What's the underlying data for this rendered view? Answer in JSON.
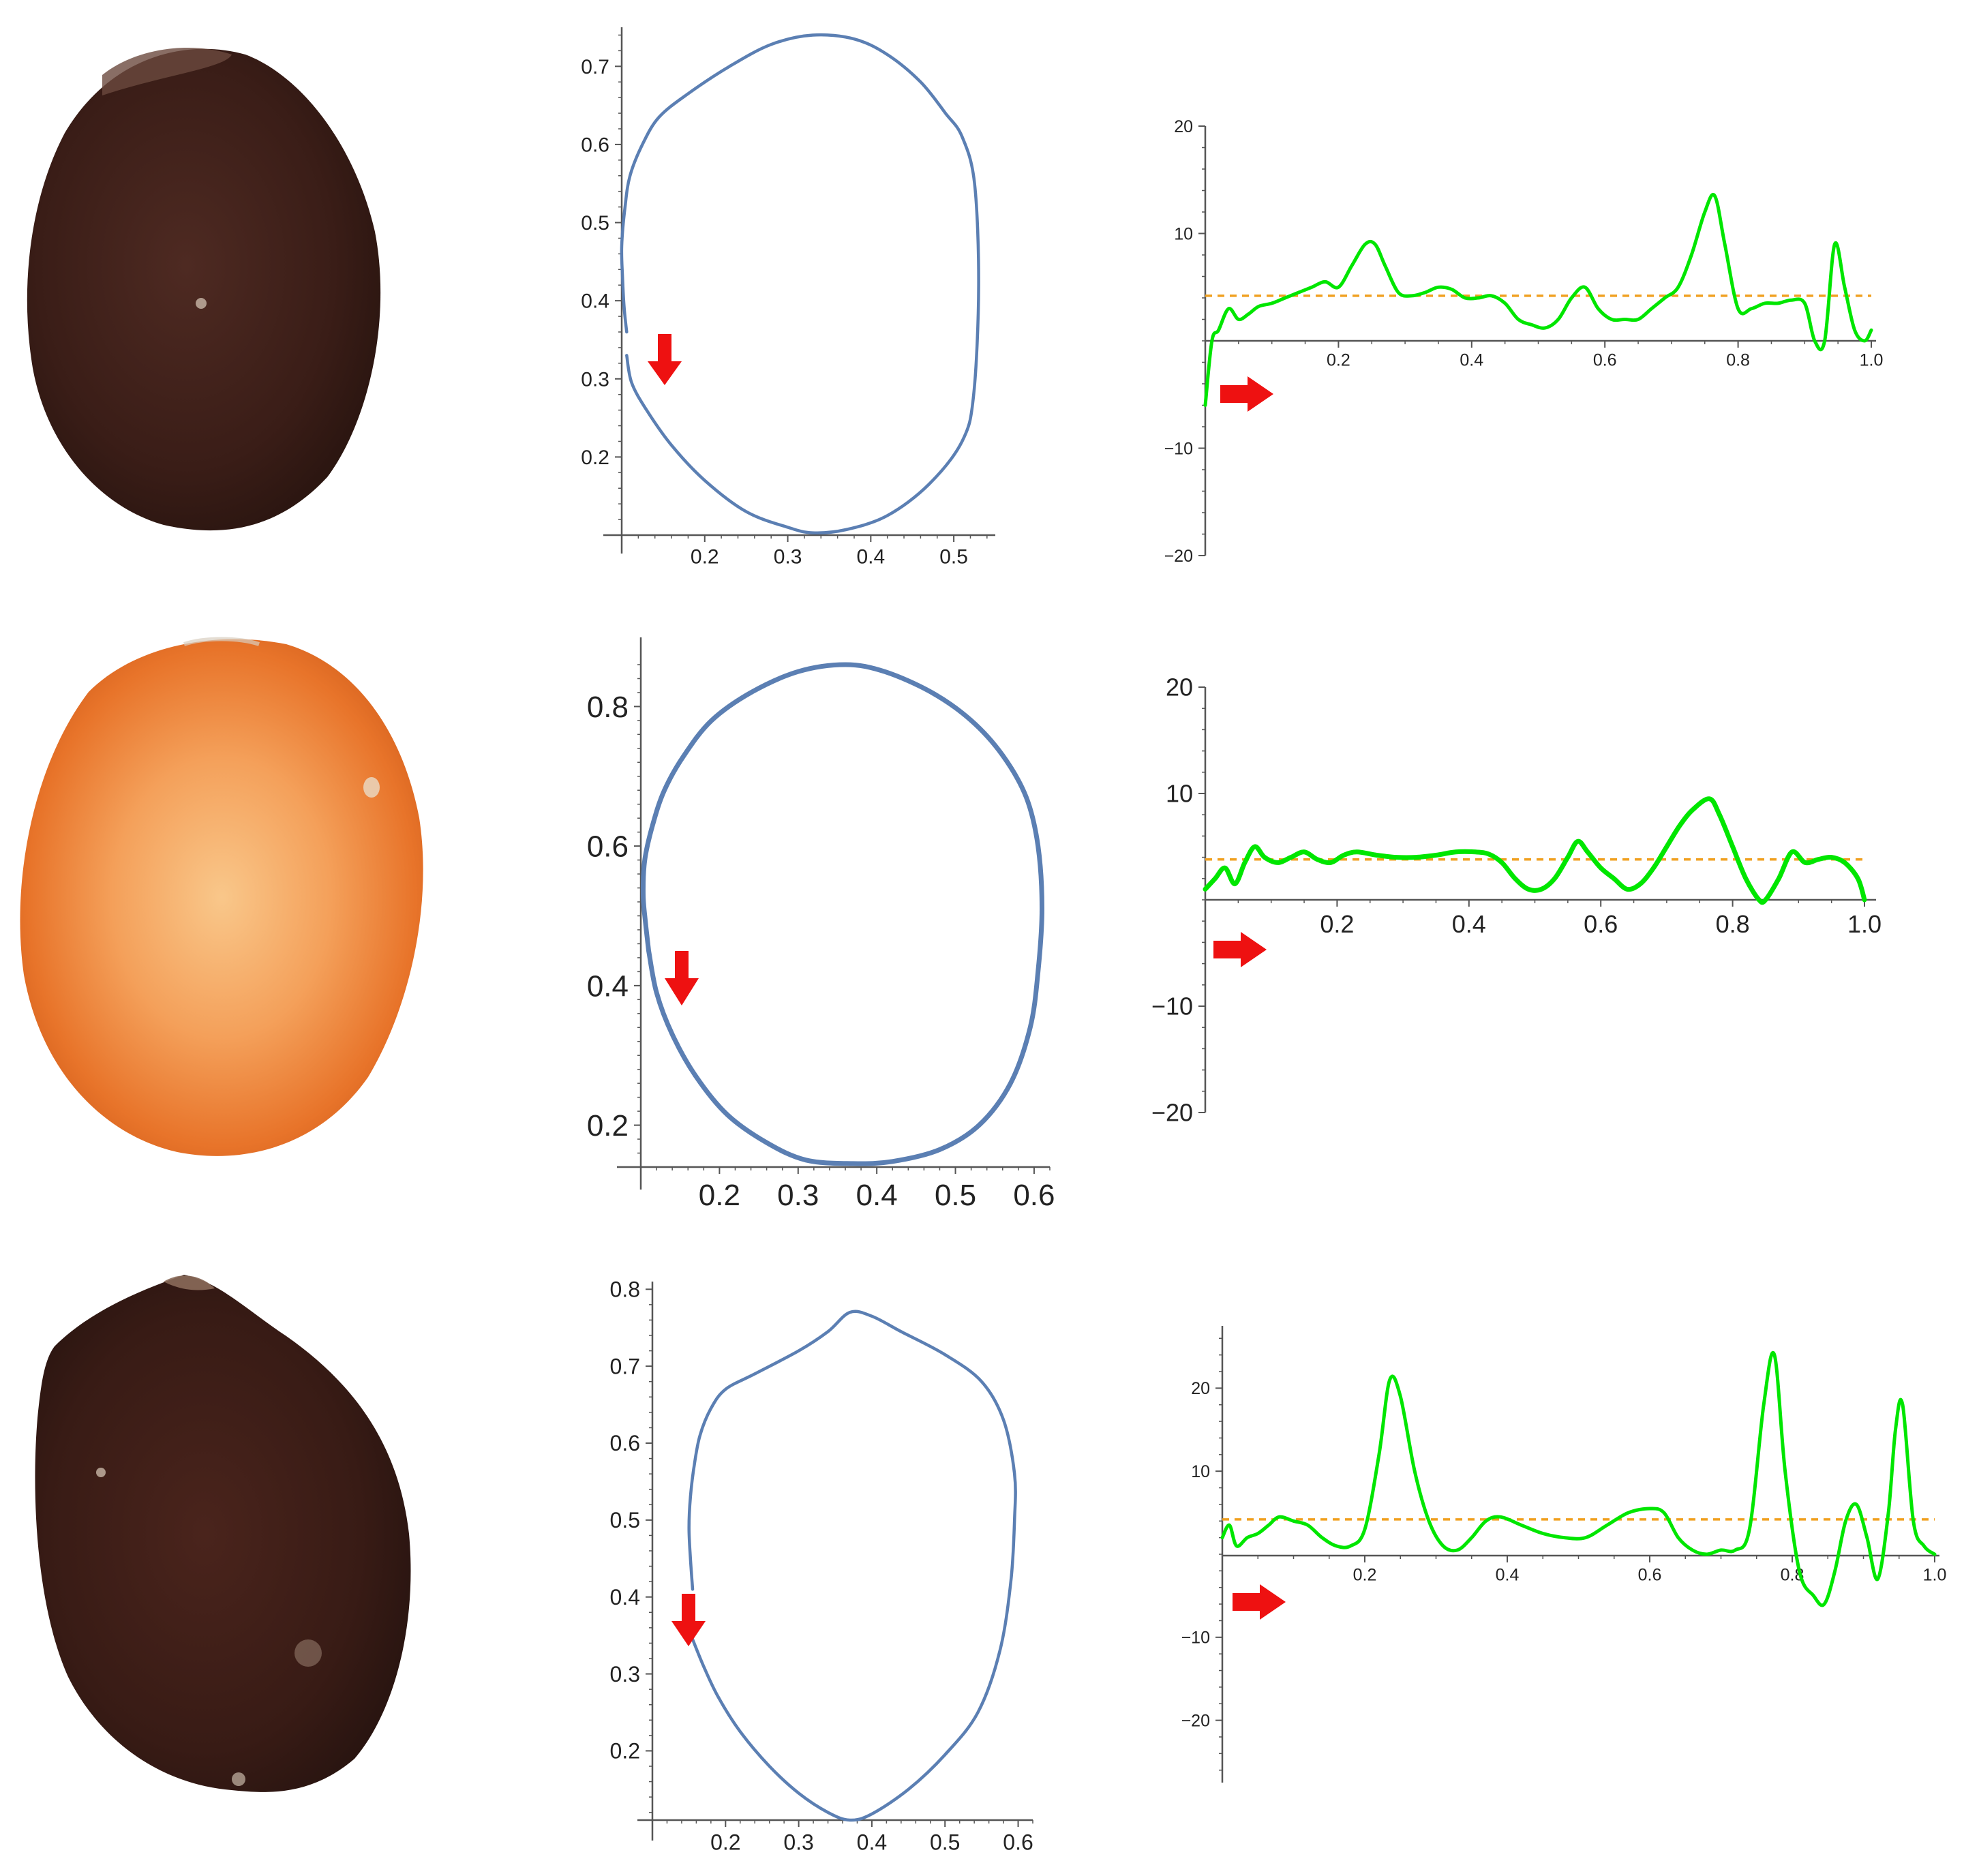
{
  "colors": {
    "outline": "#5b7fb3",
    "curvature": "#00e600",
    "mean_line": "#f0a020",
    "arrow": "#ee1111",
    "axis": "#555555",
    "seed_dark_brown": "#3a1e18",
    "seed_orange": "#e8742a"
  },
  "rows": [
    {
      "seed": {
        "color": "seed_dark_brown",
        "description_icon": "seed-photo-icon"
      },
      "outline": {
        "x_ticks": [
          "0.2",
          "0.3",
          "0.4",
          "0.5"
        ],
        "y_ticks": [
          "0.2",
          "0.3",
          "0.4",
          "0.5",
          "0.6",
          "0.7"
        ],
        "arrow_icon": "down-arrow-icon"
      },
      "curvature": {
        "x_ticks": [
          "0.2",
          "0.4",
          "0.6",
          "0.8",
          "1.0"
        ],
        "y_ticks": [
          "20",
          "10",
          "−10",
          "−20"
        ],
        "arrow_icon": "right-arrow-icon"
      }
    },
    {
      "seed": {
        "color": "seed_orange",
        "description_icon": "seed-photo-icon"
      },
      "outline": {
        "x_ticks": [
          "0.2",
          "0.3",
          "0.4",
          "0.5",
          "0.6"
        ],
        "y_ticks": [
          "0.2",
          "0.4",
          "0.6",
          "0.8"
        ],
        "arrow_icon": "down-arrow-icon"
      },
      "curvature": {
        "x_ticks": [
          "0.2",
          "0.4",
          "0.6",
          "0.8",
          "1.0"
        ],
        "y_ticks": [
          "20",
          "10",
          "−10",
          "−20"
        ],
        "arrow_icon": "right-arrow-icon"
      }
    },
    {
      "seed": {
        "color": "seed_dark_brown",
        "description_icon": "seed-photo-icon"
      },
      "outline": {
        "x_ticks": [
          "0.2",
          "0.3",
          "0.4",
          "0.5",
          "0.6"
        ],
        "y_ticks": [
          "0.2",
          "0.3",
          "0.4",
          "0.5",
          "0.6",
          "0.7",
          "0.8"
        ],
        "arrow_icon": "down-arrow-icon"
      },
      "curvature": {
        "x_ticks": [
          "0.2",
          "0.4",
          "0.6",
          "0.8",
          "1.0"
        ],
        "y_ticks": [
          "20",
          "10",
          "−10",
          "−20"
        ],
        "arrow_icon": "right-arrow-icon"
      }
    }
  ],
  "chart_data": [
    {
      "type": "line",
      "role": "seed-outline",
      "row": 1,
      "xlim": [
        0.1,
        0.55
      ],
      "ylim": [
        0.1,
        0.75
      ],
      "x": [
        0.106,
        0.112,
        0.13,
        0.16,
        0.2,
        0.25,
        0.3,
        0.33,
        0.37,
        0.42,
        0.47,
        0.51,
        0.524,
        0.53,
        0.525,
        0.51,
        0.49,
        0.46,
        0.42,
        0.38,
        0.33,
        0.28,
        0.23,
        0.18,
        0.145,
        0.125,
        0.11,
        0.104,
        0.1,
        0.101,
        0.103,
        0.106
      ],
      "y": [
        0.33,
        0.295,
        0.26,
        0.215,
        0.17,
        0.13,
        0.11,
        0.103,
        0.107,
        0.125,
        0.165,
        0.22,
        0.28,
        0.42,
        0.55,
        0.61,
        0.64,
        0.68,
        0.715,
        0.735,
        0.74,
        0.728,
        0.7,
        0.665,
        0.635,
        0.6,
        0.56,
        0.52,
        0.47,
        0.43,
        0.39,
        0.36
      ]
    },
    {
      "type": "line",
      "role": "curvature-profile",
      "row": 1,
      "xlim": [
        0,
        1.0
      ],
      "ylim": [
        -20,
        20
      ],
      "mean": 4.2,
      "x": [
        0,
        0.01,
        0.02,
        0.035,
        0.05,
        0.065,
        0.08,
        0.1,
        0.12,
        0.14,
        0.16,
        0.18,
        0.2,
        0.22,
        0.24,
        0.255,
        0.27,
        0.29,
        0.31,
        0.33,
        0.35,
        0.37,
        0.39,
        0.41,
        0.43,
        0.45,
        0.47,
        0.49,
        0.51,
        0.53,
        0.55,
        0.57,
        0.59,
        0.61,
        0.63,
        0.65,
        0.67,
        0.69,
        0.71,
        0.73,
        0.75,
        0.765,
        0.78,
        0.8,
        0.82,
        0.84,
        0.86,
        0.88,
        0.9,
        0.915,
        0.93,
        0.945,
        0.96,
        0.975,
        0.99,
        1.0
      ],
      "y": [
        -6,
        0,
        1,
        3,
        2,
        2.5,
        3.2,
        3.5,
        4,
        4.5,
        5,
        5.5,
        5,
        7,
        9,
        9,
        7,
        4.5,
        4.2,
        4.5,
        5,
        4.8,
        4,
        4,
        4.2,
        3.5,
        2,
        1.5,
        1.2,
        2,
        4,
        5,
        3,
        2,
        2,
        2,
        3,
        4,
        5,
        8,
        12,
        13.5,
        9,
        3,
        3,
        3.5,
        3.5,
        3.8,
        3.5,
        0,
        0,
        9,
        5,
        1,
        0,
        1
      ]
    },
    {
      "type": "line",
      "role": "seed-outline",
      "row": 2,
      "xlim": [
        0.1,
        0.62
      ],
      "ylim": [
        0.14,
        0.86
      ],
      "x": [
        0.11,
        0.12,
        0.14,
        0.17,
        0.21,
        0.26,
        0.31,
        0.37,
        0.42,
        0.48,
        0.53,
        0.57,
        0.595,
        0.605,
        0.61,
        0.605,
        0.59,
        0.56,
        0.52,
        0.47,
        0.41,
        0.36,
        0.3,
        0.24,
        0.19,
        0.155,
        0.13,
        0.115,
        0.105,
        0.103,
        0.106,
        0.11
      ],
      "y": [
        0.45,
        0.39,
        0.33,
        0.27,
        0.215,
        0.175,
        0.15,
        0.145,
        0.148,
        0.165,
        0.2,
        0.26,
        0.34,
        0.42,
        0.51,
        0.6,
        0.67,
        0.73,
        0.78,
        0.82,
        0.85,
        0.86,
        0.85,
        0.82,
        0.78,
        0.73,
        0.68,
        0.63,
        0.58,
        0.53,
        0.49,
        0.45
      ]
    },
    {
      "type": "line",
      "role": "curvature-profile",
      "row": 2,
      "xlim": [
        0,
        1.0
      ],
      "ylim": [
        -20,
        20
      ],
      "mean": 3.8,
      "x": [
        0,
        0.015,
        0.03,
        0.045,
        0.06,
        0.075,
        0.09,
        0.11,
        0.13,
        0.15,
        0.17,
        0.19,
        0.21,
        0.23,
        0.26,
        0.29,
        0.32,
        0.35,
        0.38,
        0.41,
        0.43,
        0.45,
        0.47,
        0.49,
        0.51,
        0.53,
        0.55,
        0.565,
        0.58,
        0.6,
        0.62,
        0.64,
        0.66,
        0.68,
        0.7,
        0.72,
        0.74,
        0.765,
        0.78,
        0.8,
        0.82,
        0.84,
        0.85,
        0.87,
        0.89,
        0.91,
        0.93,
        0.95,
        0.97,
        0.99,
        1.0
      ],
      "y": [
        1,
        2,
        3,
        1.5,
        3.5,
        5,
        4,
        3.5,
        4,
        4.5,
        3.8,
        3.5,
        4.2,
        4.5,
        4.2,
        4,
        4,
        4.2,
        4.5,
        4.5,
        4.3,
        3.5,
        2,
        1,
        1,
        2,
        4,
        5.5,
        4.5,
        3,
        2,
        1,
        1.5,
        3,
        5,
        7,
        8.5,
        9.5,
        8,
        5,
        2,
        0,
        0,
        2,
        4.5,
        3.5,
        3.8,
        4,
        3.5,
        2,
        0
      ]
    },
    {
      "type": "line",
      "role": "seed-outline",
      "row": 3,
      "xlim": [
        0.1,
        0.62
      ],
      "ylim": [
        0.11,
        0.81
      ],
      "x": [
        0.155,
        0.17,
        0.19,
        0.22,
        0.26,
        0.3,
        0.34,
        0.37,
        0.4,
        0.45,
        0.5,
        0.545,
        0.575,
        0.59,
        0.595,
        0.595,
        0.58,
        0.55,
        0.5,
        0.44,
        0.4,
        0.37,
        0.34,
        0.3,
        0.24,
        0.2,
        0.18,
        0.165,
        0.157,
        0.152,
        0.15,
        0.152,
        0.155
      ],
      "y": [
        0.345,
        0.31,
        0.27,
        0.225,
        0.18,
        0.145,
        0.12,
        0.11,
        0.118,
        0.15,
        0.195,
        0.25,
        0.33,
        0.42,
        0.5,
        0.56,
        0.63,
        0.68,
        0.715,
        0.745,
        0.765,
        0.77,
        0.745,
        0.72,
        0.69,
        0.67,
        0.645,
        0.61,
        0.57,
        0.53,
        0.49,
        0.45,
        0.41
      ]
    },
    {
      "type": "line",
      "role": "curvature-profile",
      "row": 3,
      "xlim": [
        0,
        1.0
      ],
      "ylim": [
        -25,
        25
      ],
      "mean": 4.2,
      "x": [
        0,
        0.01,
        0.02,
        0.035,
        0.05,
        0.065,
        0.08,
        0.1,
        0.12,
        0.14,
        0.16,
        0.18,
        0.2,
        0.22,
        0.235,
        0.25,
        0.27,
        0.29,
        0.31,
        0.33,
        0.35,
        0.37,
        0.39,
        0.42,
        0.45,
        0.48,
        0.51,
        0.54,
        0.57,
        0.6,
        0.62,
        0.64,
        0.66,
        0.68,
        0.7,
        0.72,
        0.74,
        0.76,
        0.775,
        0.79,
        0.81,
        0.83,
        0.845,
        0.86,
        0.875,
        0.89,
        0.905,
        0.92,
        0.935,
        0.945,
        0.955,
        0.97,
        0.985,
        1.0
      ],
      "y": [
        2,
        3.5,
        1,
        2,
        2.5,
        3.5,
        4.5,
        4,
        3.5,
        2,
        1,
        1,
        3,
        12,
        21,
        19,
        10,
        4,
        1,
        0.5,
        2,
        4,
        4.5,
        3.5,
        2.5,
        2,
        2,
        3.5,
        5,
        5.5,
        5,
        2,
        0.5,
        0,
        0.5,
        0.5,
        3,
        18,
        24,
        10,
        -2,
        -5,
        -6,
        -2,
        4,
        6,
        2,
        -3,
        5,
        15,
        18,
        4,
        1,
        0
      ]
    }
  ]
}
